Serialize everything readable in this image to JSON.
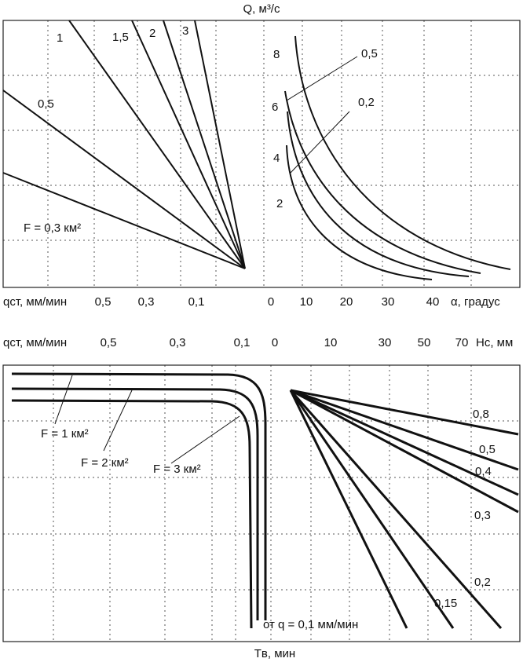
{
  "chart_data": [
    {
      "type": "line",
      "panel": "top",
      "title": "",
      "ylabel_text": "Q, м³/с",
      "left_axis": {
        "xlabel": "qст, мм/мин",
        "ticks": [
          "0,5",
          "0,3",
          "0,1"
        ],
        "series": [
          {
            "name": "F = 0,3 км²",
            "label": "F = 0,3 км²"
          },
          {
            "name": "0,5",
            "label": "0,5"
          },
          {
            "name": "1",
            "label": "1"
          },
          {
            "name": "1,5",
            "label": "1,5"
          },
          {
            "name": "2",
            "label": "2"
          },
          {
            "name": "3",
            "label": "3"
          }
        ]
      },
      "right_axis": {
        "xlabel": "α, градус",
        "ticks": [
          "0",
          "10",
          "20",
          "30",
          "40"
        ],
        "series": [
          {
            "name": "2",
            "label": "2"
          },
          {
            "name": "4",
            "label": "4"
          },
          {
            "name": "6",
            "label": "6"
          },
          {
            "name": "8",
            "label": "8"
          }
        ],
        "callouts": [
          "0,5",
          "0,2"
        ]
      },
      "grid": true
    },
    {
      "type": "line",
      "panel": "bottom",
      "title": "",
      "xlabel_bottom": "Tв, мин",
      "left_axis": {
        "xlabel": "qст, мм/мин",
        "ticks": [
          "0,5",
          "0,3",
          "0,1",
          "0"
        ],
        "series": [
          {
            "name": "F = 1 км²",
            "label": "F = 1 км²"
          },
          {
            "name": "F = 2 км²",
            "label": "F = 2 км²"
          },
          {
            "name": "F = 3 км²",
            "label": "F = 3 км²"
          }
        ],
        "note": "от q = 0,1 мм/мин"
      },
      "right_axis": {
        "xlabel": "Hс, мм",
        "ticks": [
          "10",
          "30",
          "50",
          "70"
        ],
        "series": [
          {
            "name": "0,8",
            "label": "0,8"
          },
          {
            "name": "0,5",
            "label": "0,5"
          },
          {
            "name": "0,4",
            "label": "0,4"
          },
          {
            "name": "0,3",
            "label": "0,3"
          },
          {
            "name": "0,2",
            "label": "0,2"
          },
          {
            "name": "0,15",
            "label": "0,15"
          }
        ]
      },
      "grid": true
    }
  ],
  "colors": {
    "line": "#111111",
    "grid": "#555555",
    "background": "#ffffff"
  }
}
